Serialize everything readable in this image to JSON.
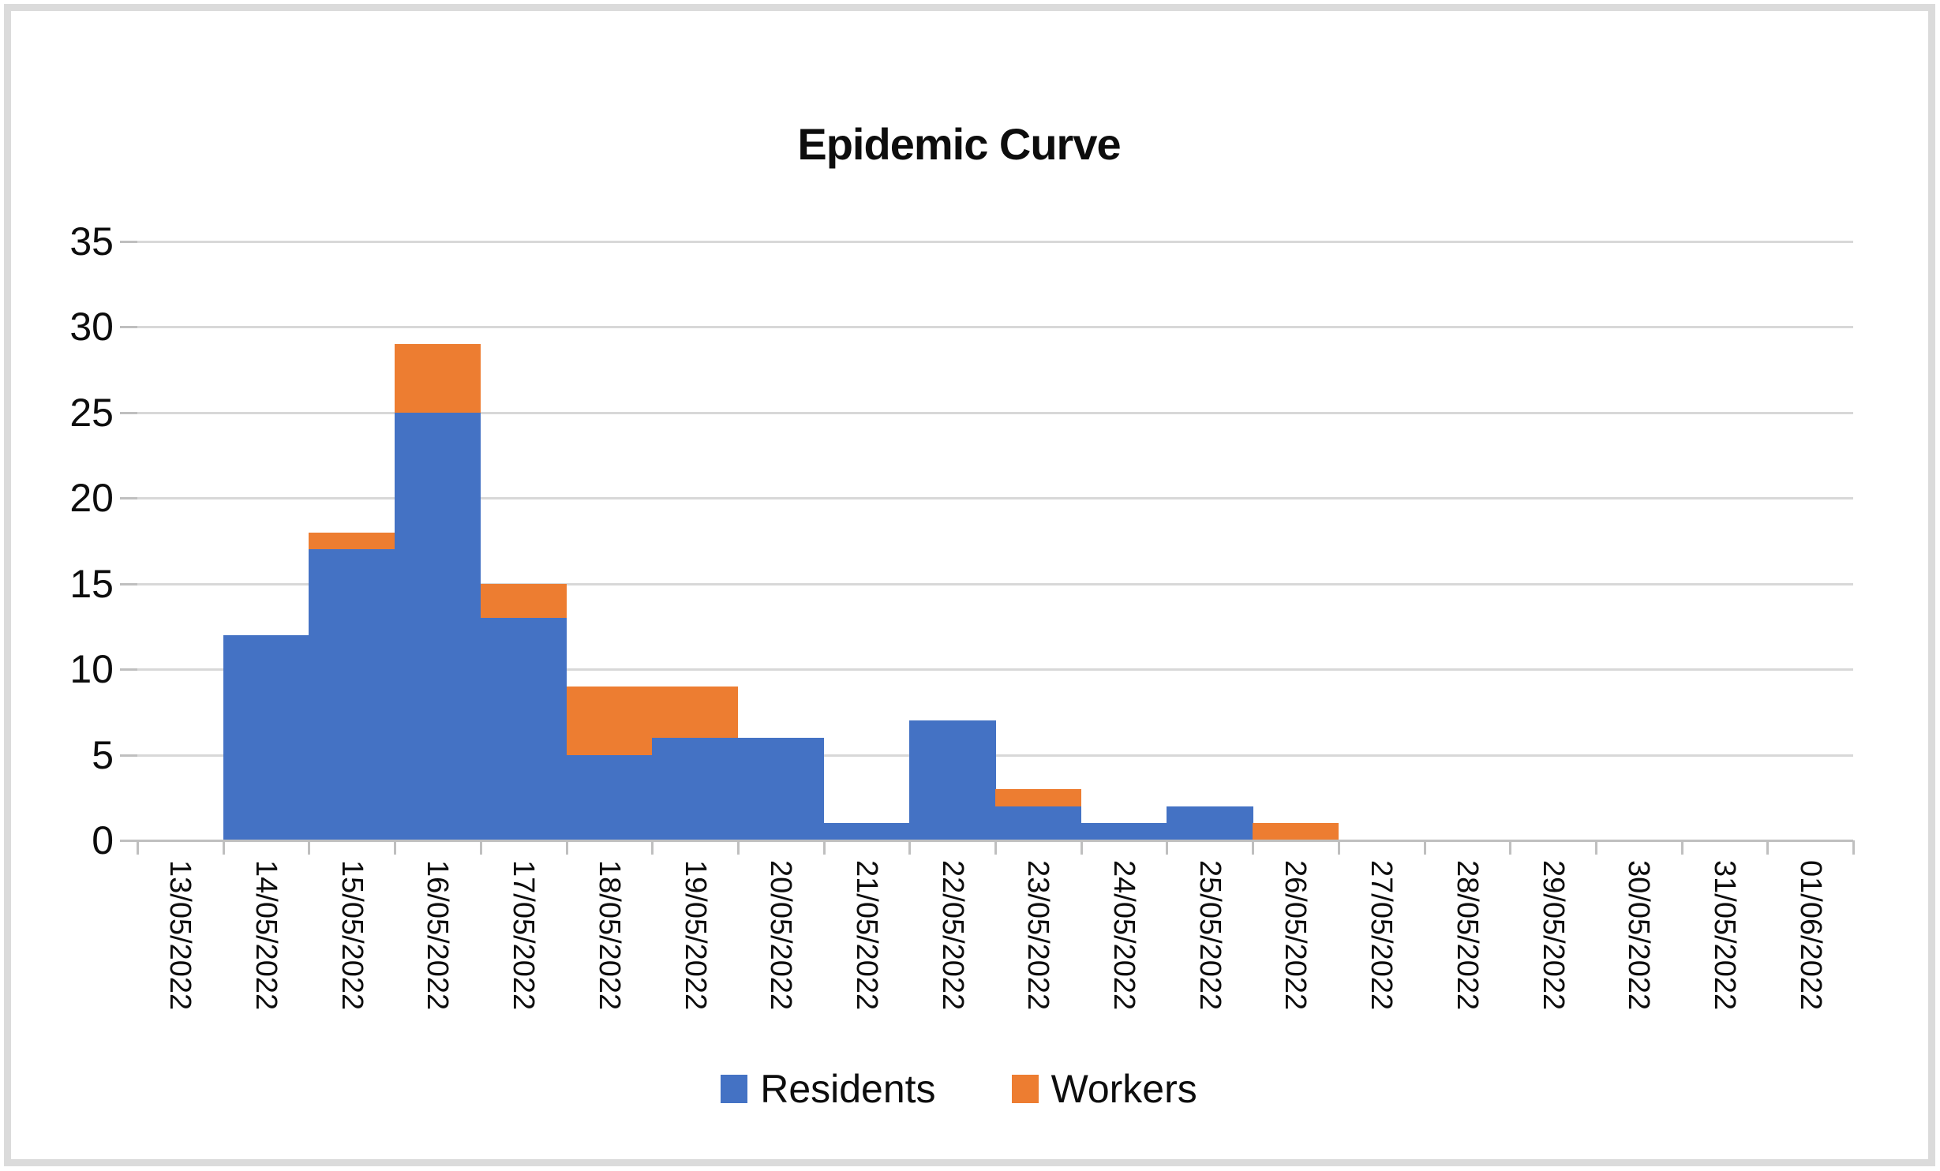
{
  "frame": {
    "border_color": "#dbdbdb",
    "background": "#ffffff"
  },
  "chart_data": {
    "type": "bar",
    "stacked": true,
    "title": "Epidemic Curve",
    "categories": [
      "13/05/2022",
      "14/05/2022",
      "15/05/2022",
      "16/05/2022",
      "17/05/2022",
      "18/05/2022",
      "19/05/2022",
      "20/05/2022",
      "21/05/2022",
      "22/05/2022",
      "23/05/2022",
      "24/05/2022",
      "25/05/2022",
      "26/05/2022",
      "27/05/2022",
      "28/05/2022",
      "29/05/2022",
      "30/05/2022",
      "31/05/2022",
      "01/06/2022"
    ],
    "series": [
      {
        "name": "Residents",
        "color": "#4472C4",
        "values": [
          0,
          12,
          17,
          25,
          13,
          5,
          6,
          6,
          1,
          7,
          2,
          1,
          2,
          0,
          0,
          0,
          0,
          0,
          0,
          0
        ]
      },
      {
        "name": "Workers",
        "color": "#ED7D31",
        "values": [
          0,
          0,
          1,
          4,
          2,
          4,
          3,
          0,
          0,
          0,
          1,
          0,
          0,
          1,
          0,
          0,
          0,
          0,
          0,
          0
        ]
      }
    ],
    "xlabel": "",
    "ylabel": "",
    "ylim": [
      0,
      35
    ],
    "yticks": [
      0,
      5,
      10,
      15,
      20,
      25,
      30,
      35
    ],
    "grid": true,
    "legend_position": "bottom",
    "gridline_color": "#d8d8d8",
    "axis_color": "#bfbfbf",
    "text_color": "#0d0d0d",
    "title_color": "#0d0d0d"
  }
}
